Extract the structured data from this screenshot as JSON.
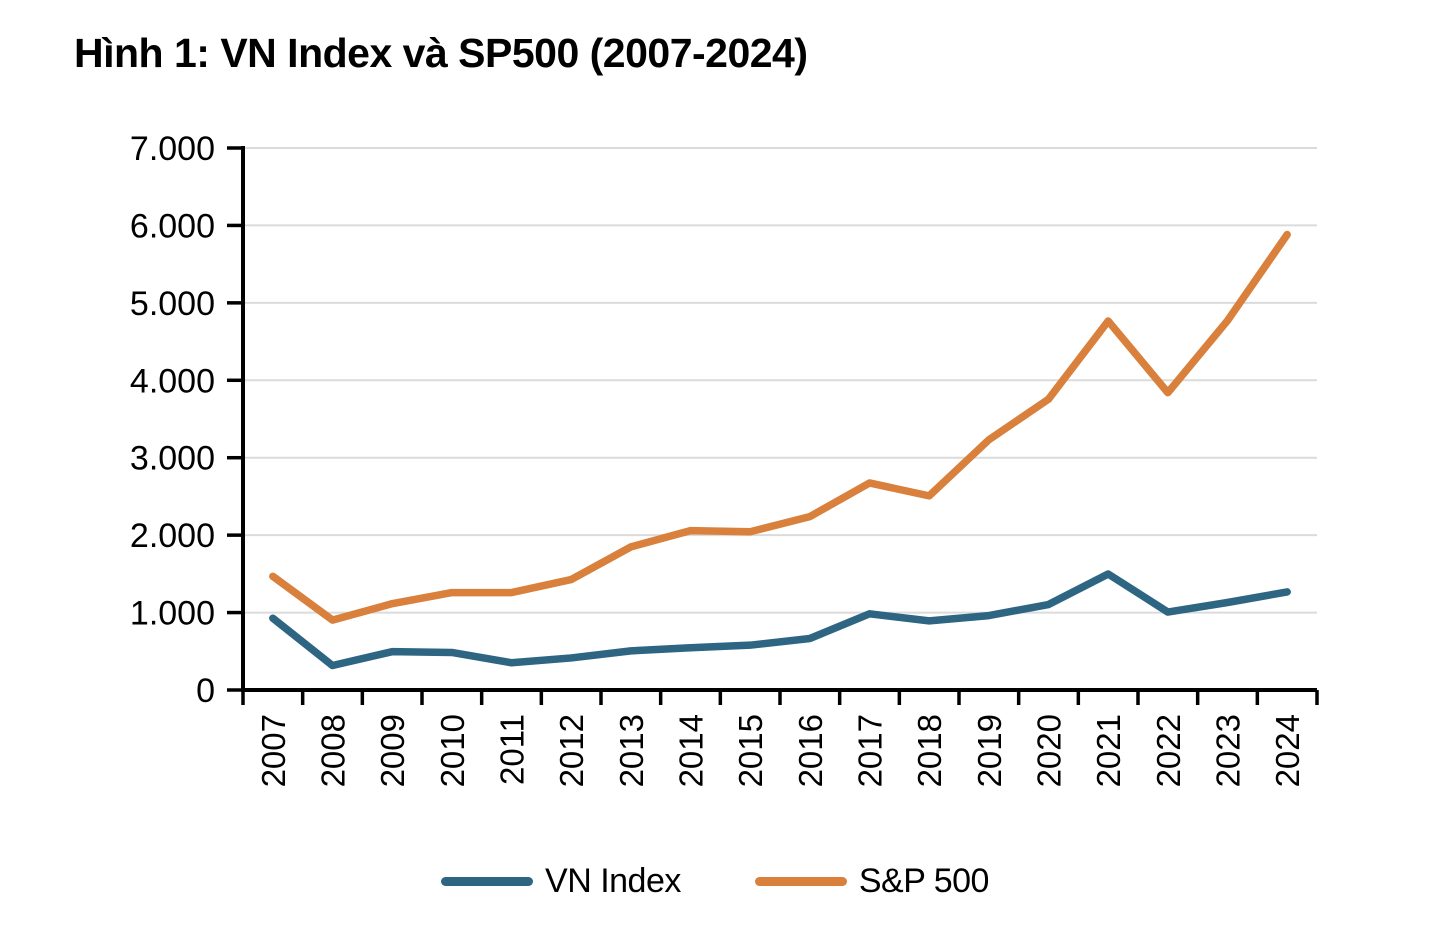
{
  "title": "Hình 1: VN Index và SP500 (2007-2024)",
  "chart_data": {
    "type": "line",
    "title": "Hình 1: VN Index và SP500 (2007-2024)",
    "categories": [
      "2007",
      "2008",
      "2009",
      "2010",
      "2011",
      "2012",
      "2013",
      "2014",
      "2015",
      "2016",
      "2017",
      "2018",
      "2019",
      "2020",
      "2021",
      "2022",
      "2023",
      "2024"
    ],
    "series": [
      {
        "name": "VN Index",
        "color": "#2E6583",
        "values": [
          927,
          316,
          495,
          485,
          352,
          414,
          505,
          546,
          579,
          665,
          984,
          893,
          961,
          1104,
          1498,
          1007,
          1130,
          1267
        ]
      },
      {
        "name": "S&P 500",
        "color": "#D8803C",
        "values": [
          1468,
          903,
          1115,
          1258,
          1258,
          1426,
          1848,
          2059,
          2044,
          2239,
          2674,
          2507,
          3231,
          3756,
          4766,
          3840,
          4770,
          5882
        ]
      }
    ],
    "xlabel": "",
    "ylabel": "",
    "ylim": [
      0,
      7000
    ],
    "y_tick_step": 1000,
    "y_tick_labels": [
      "0",
      "1.000",
      "2.000",
      "3.000",
      "4.000",
      "5.000",
      "6.000",
      "7.000"
    ],
    "x_tick_rotation": -90,
    "grid": "horizontal",
    "gridline_color": "#DBDBDB",
    "axis_color": "#000000",
    "legend_position": "bottom"
  }
}
